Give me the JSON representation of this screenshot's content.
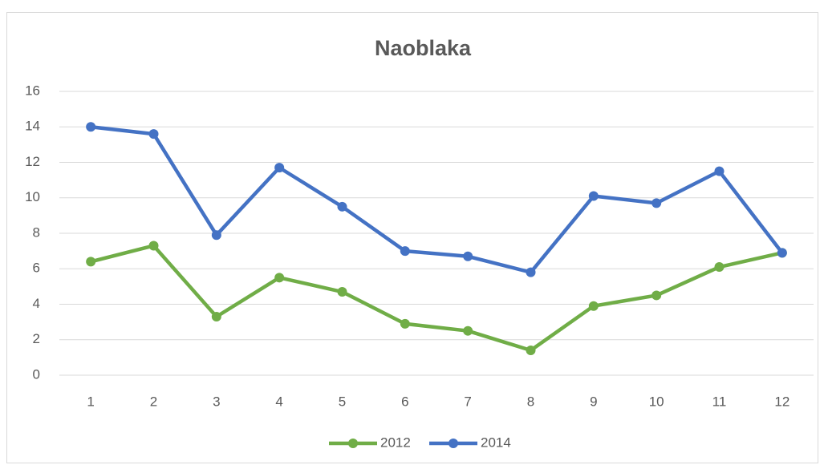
{
  "chart_data": {
    "type": "line",
    "title": "Naoblaka",
    "categories": [
      "1",
      "2",
      "3",
      "4",
      "5",
      "6",
      "7",
      "8",
      "9",
      "10",
      "11",
      "12"
    ],
    "series": [
      {
        "name": "2012",
        "color": "#70ad47",
        "values": [
          6.4,
          7.3,
          3.3,
          5.5,
          4.7,
          2.9,
          2.5,
          1.4,
          3.9,
          4.5,
          6.1,
          6.9
        ]
      },
      {
        "name": "2014",
        "color": "#4472c4",
        "values": [
          14.0,
          13.6,
          7.9,
          11.7,
          9.5,
          7.0,
          6.7,
          5.8,
          10.1,
          9.7,
          11.5,
          6.9
        ]
      }
    ],
    "ylim": [
      0,
      16
    ],
    "yticks": [
      0,
      2,
      4,
      6,
      8,
      10,
      12,
      14,
      16
    ],
    "grid": true,
    "legend": "bottom"
  }
}
